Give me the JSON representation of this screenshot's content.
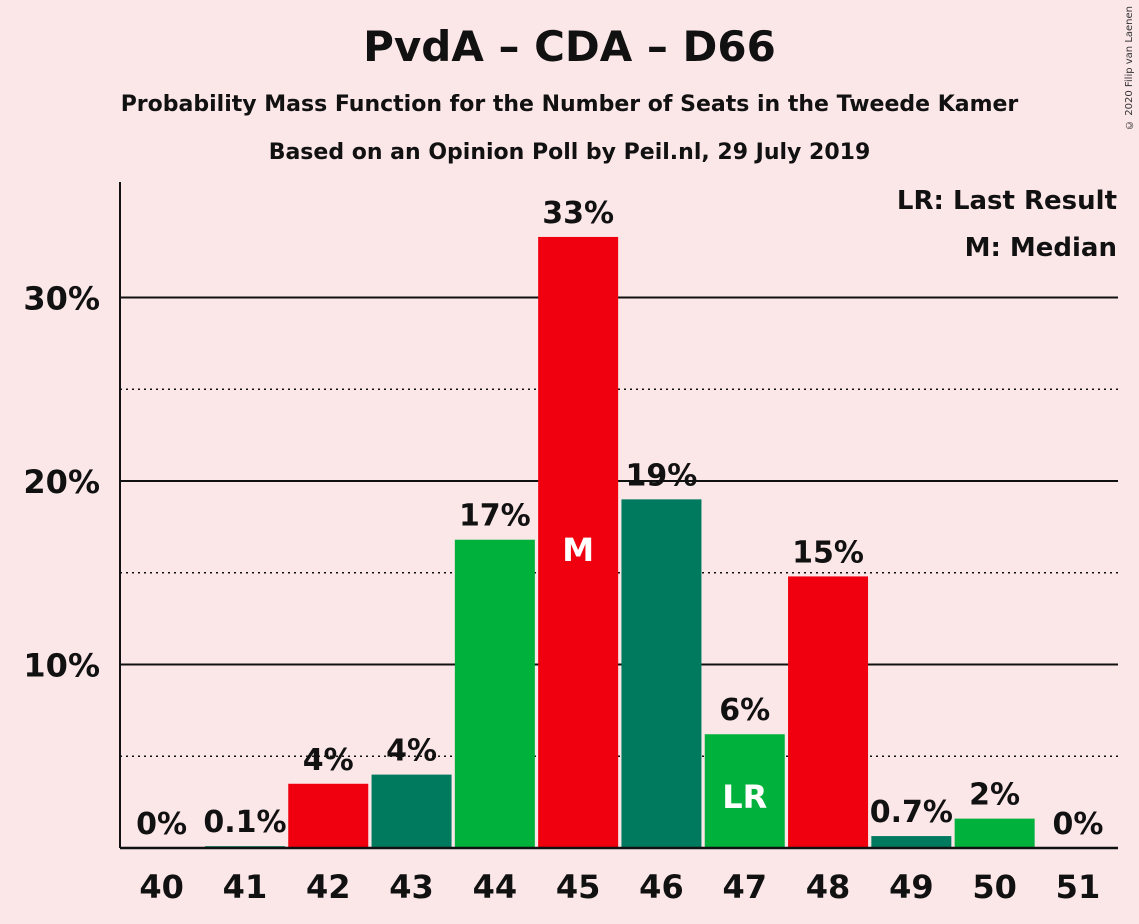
{
  "title": "PvdA – CDA – D66",
  "subtitle1": "Probability Mass Function for the Number of Seats in the Tweede Kamer",
  "subtitle2": "Based on an Opinion Poll by Peil.nl, 29 July 2019",
  "copyright": "© 2020 Filip van Laenen",
  "legend": {
    "last_result": "LR: Last Result",
    "median": "M: Median"
  },
  "colors": {
    "background": "#fbe6e8",
    "red": "#f0000f",
    "dark_green": "#007a5e",
    "green": "#00b13c"
  },
  "chart_data": {
    "type": "bar",
    "categories": [
      "40",
      "41",
      "42",
      "43",
      "44",
      "45",
      "46",
      "47",
      "48",
      "49",
      "50",
      "51"
    ],
    "values": [
      0,
      0.1,
      3.5,
      4.0,
      16.8,
      33.3,
      19.0,
      6.2,
      14.8,
      0.65,
      1.6,
      0
    ],
    "value_labels": [
      "0%",
      "0.1%",
      "4%",
      "4%",
      "17%",
      "33%",
      "19%",
      "6%",
      "15%",
      "0.7%",
      "2%",
      "0%"
    ],
    "bar_colors": [
      "#f0000f",
      "#007a5e",
      "#f0000f",
      "#007a5e",
      "#00b13c",
      "#f0000f",
      "#007a5e",
      "#00b13c",
      "#f0000f",
      "#007a5e",
      "#00b13c",
      "#f0000f"
    ],
    "markers": {
      "45": "M",
      "47": "LR"
    },
    "yticks": [
      10,
      20,
      30
    ],
    "ytick_labels": [
      "10%",
      "20%",
      "30%"
    ],
    "ylim": [
      0,
      36
    ],
    "grid": "solid major every 10%, dotted minor every 5%",
    "legend_position": "top-right"
  }
}
